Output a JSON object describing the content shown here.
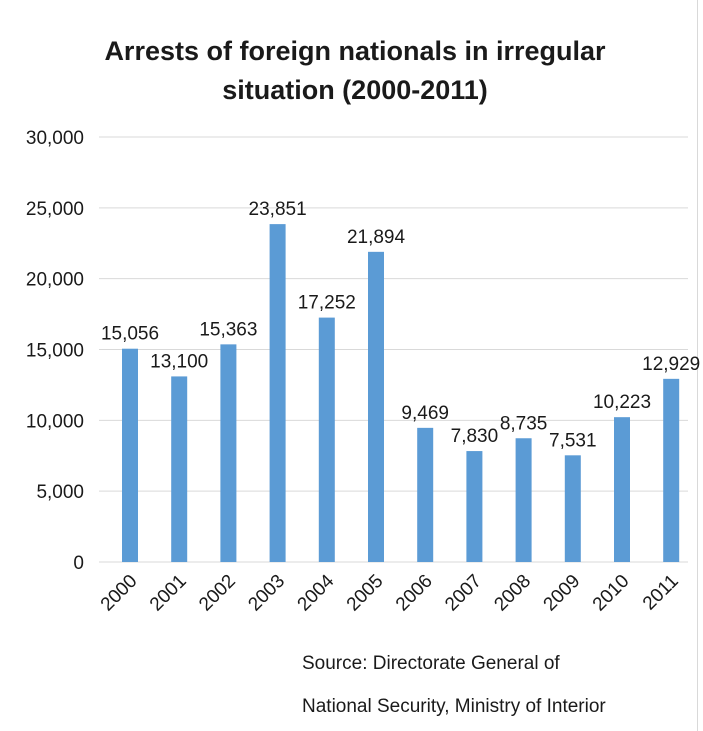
{
  "chart_data": {
    "type": "bar",
    "title_lines": [
      "Arrests of foreign nationals in irregular",
      "situation (2000-2011)"
    ],
    "categories": [
      "2000",
      "2001",
      "2002",
      "2003",
      "2004",
      "2005",
      "2006",
      "2007",
      "2008",
      "2009",
      "2010",
      "2011"
    ],
    "values": [
      15056,
      13100,
      15363,
      23851,
      17252,
      21894,
      9469,
      7830,
      8735,
      7531,
      10223,
      12929
    ],
    "data_labels": [
      "15,056",
      "13,100",
      "15,363",
      "23,851",
      "17,252",
      "21,894",
      "9,469",
      "7,830",
      "8,735",
      "7,531",
      "10,223",
      "12,929"
    ],
    "ylim": [
      0,
      30000
    ],
    "y_ticks": [
      0,
      5000,
      10000,
      15000,
      20000,
      25000,
      30000
    ],
    "y_tick_labels": [
      "0",
      "5,000",
      "10,000",
      "15,000",
      "20,000",
      "25,000",
      "30,000"
    ],
    "grid": true,
    "bar_color": "#5b9bd5",
    "grid_color": "#d9d9d9",
    "source_lines": [
      "Source: Directorate General of",
      "National Security, Ministry of Interior"
    ]
  }
}
